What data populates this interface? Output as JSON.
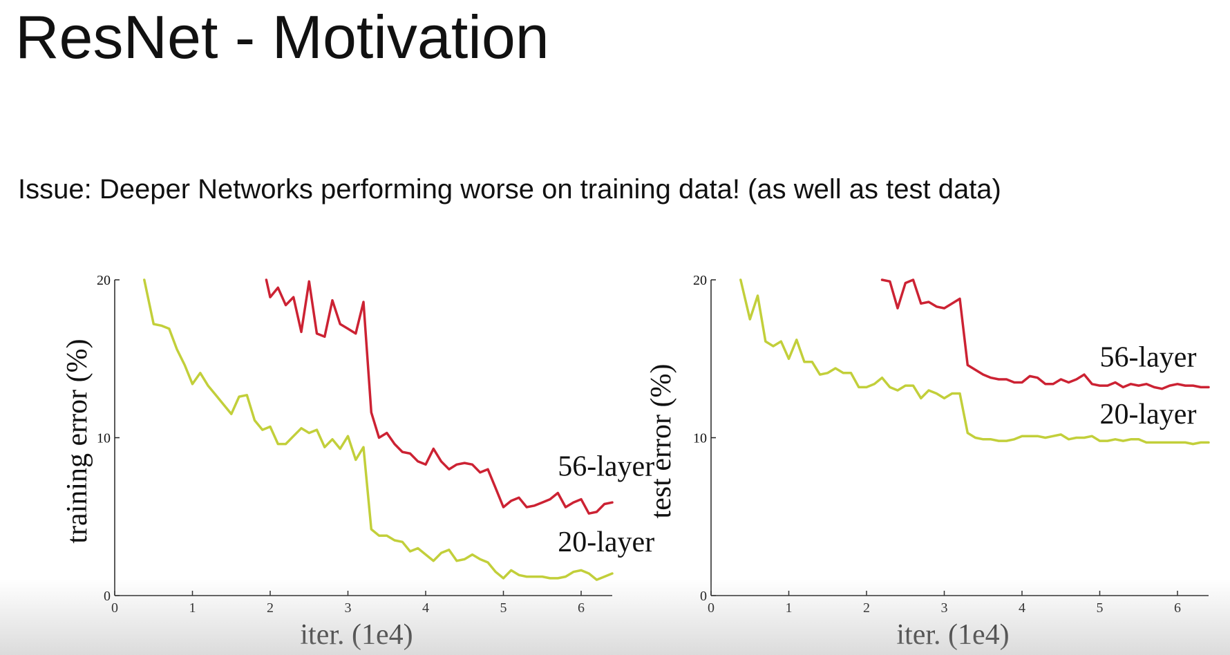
{
  "slide": {
    "title": "ResNet - Motivation",
    "subtitle": "Issue: Deeper Networks performing worse on training data! (as well as test data)"
  },
  "colors": {
    "layer56": "#cc2233",
    "layer20": "#c2cf3a",
    "axis": "#222222",
    "text": "#111111"
  },
  "chart_data": [
    {
      "type": "line",
      "title": "",
      "xlabel": "iter. (1e4)",
      "ylabel": "training error (%)",
      "xlim": [
        0,
        6.4
      ],
      "ylim": [
        0,
        20
      ],
      "xticks": [
        "0",
        "1",
        "2",
        "3",
        "4",
        "5",
        "6"
      ],
      "yticks": [
        "0",
        "10",
        "20"
      ],
      "grid": false,
      "legend": "inline labels at right end of lines",
      "series": [
        {
          "name": "56-layer",
          "color_key": "layer56",
          "x": [
            1.95,
            2.0,
            2.1,
            2.2,
            2.3,
            2.4,
            2.5,
            2.6,
            2.7,
            2.8,
            2.9,
            3.0,
            3.1,
            3.2,
            3.3,
            3.4,
            3.5,
            3.6,
            3.7,
            3.8,
            3.9,
            4.0,
            4.1,
            4.2,
            4.3,
            4.4,
            4.5,
            4.6,
            4.7,
            4.8,
            4.9,
            5.0,
            5.1,
            5.2,
            5.3,
            5.4,
            5.5,
            5.6,
            5.7,
            5.8,
            5.9,
            6.0,
            6.1,
            6.2,
            6.3,
            6.4
          ],
          "y": [
            20.0,
            18.9,
            19.5,
            18.4,
            18.9,
            16.7,
            19.9,
            16.6,
            16.4,
            18.7,
            17.2,
            16.9,
            16.6,
            18.6,
            11.6,
            10.0,
            10.3,
            9.6,
            9.1,
            9.0,
            8.5,
            8.3,
            9.3,
            8.5,
            8.0,
            8.3,
            8.4,
            8.3,
            7.8,
            8.0,
            6.8,
            5.6,
            6.0,
            6.2,
            5.6,
            5.7,
            5.9,
            6.1,
            6.5,
            5.6,
            5.9,
            6.1,
            5.2,
            5.3,
            5.8,
            5.9
          ],
          "label": "56-layer",
          "label_at": [
            5.7,
            7.6
          ]
        },
        {
          "name": "20-layer",
          "color_key": "layer20",
          "x": [
            0.38,
            0.5,
            0.6,
            0.7,
            0.8,
            0.9,
            1.0,
            1.1,
            1.2,
            1.3,
            1.4,
            1.5,
            1.6,
            1.7,
            1.8,
            1.9,
            2.0,
            2.1,
            2.2,
            2.3,
            2.4,
            2.5,
            2.6,
            2.7,
            2.8,
            2.9,
            3.0,
            3.1,
            3.2,
            3.3,
            3.4,
            3.5,
            3.6,
            3.7,
            3.8,
            3.9,
            4.0,
            4.1,
            4.2,
            4.3,
            4.4,
            4.5,
            4.6,
            4.7,
            4.8,
            4.9,
            5.0,
            5.1,
            5.2,
            5.3,
            5.4,
            5.5,
            5.6,
            5.7,
            5.8,
            5.9,
            6.0,
            6.1,
            6.2,
            6.3,
            6.4
          ],
          "y": [
            20.0,
            17.2,
            17.1,
            16.9,
            15.6,
            14.6,
            13.4,
            14.1,
            13.3,
            12.7,
            12.1,
            11.5,
            12.6,
            12.7,
            11.1,
            10.5,
            10.7,
            9.6,
            9.6,
            10.1,
            10.6,
            10.3,
            10.5,
            9.4,
            9.9,
            9.3,
            10.1,
            8.6,
            9.4,
            4.2,
            3.8,
            3.8,
            3.5,
            3.4,
            2.8,
            3.0,
            2.6,
            2.2,
            2.7,
            2.9,
            2.2,
            2.3,
            2.6,
            2.3,
            2.1,
            1.5,
            1.1,
            1.6,
            1.3,
            1.2,
            1.2,
            1.2,
            1.1,
            1.1,
            1.2,
            1.5,
            1.6,
            1.4,
            1.0,
            1.2,
            1.4
          ],
          "label": "20-layer",
          "label_at": [
            5.7,
            2.8
          ]
        }
      ]
    },
    {
      "type": "line",
      "title": "",
      "xlabel": "iter. (1e4)",
      "ylabel": "test error (%)",
      "xlim": [
        0,
        6.4
      ],
      "ylim": [
        0,
        20
      ],
      "xticks": [
        "0",
        "1",
        "2",
        "3",
        "4",
        "5",
        "6"
      ],
      "yticks": [
        "0",
        "10",
        "20"
      ],
      "grid": false,
      "legend": "inline labels at right end of lines",
      "series": [
        {
          "name": "56-layer",
          "color_key": "layer56",
          "x": [
            2.2,
            2.3,
            2.4,
            2.5,
            2.6,
            2.7,
            2.8,
            2.9,
            3.0,
            3.1,
            3.2,
            3.3,
            3.4,
            3.5,
            3.6,
            3.7,
            3.8,
            3.9,
            4.0,
            4.1,
            4.2,
            4.3,
            4.4,
            4.5,
            4.6,
            4.7,
            4.8,
            4.9,
            5.0,
            5.1,
            5.2,
            5.3,
            5.4,
            5.5,
            5.6,
            5.7,
            5.8,
            5.9,
            6.0,
            6.1,
            6.2,
            6.3,
            6.4
          ],
          "y": [
            20.0,
            19.9,
            18.2,
            19.8,
            20.0,
            18.5,
            18.6,
            18.3,
            18.2,
            18.5,
            18.8,
            14.6,
            14.3,
            14.0,
            13.8,
            13.7,
            13.7,
            13.5,
            13.5,
            13.9,
            13.8,
            13.4,
            13.4,
            13.7,
            13.5,
            13.7,
            14.0,
            13.4,
            13.3,
            13.3,
            13.5,
            13.2,
            13.4,
            13.3,
            13.4,
            13.2,
            13.1,
            13.3,
            13.4,
            13.3,
            13.3,
            13.2,
            13.2
          ],
          "label": "56-layer",
          "label_at": [
            5.0,
            14.5
          ]
        },
        {
          "name": "20-layer",
          "color_key": "layer20",
          "x": [
            0.38,
            0.5,
            0.6,
            0.7,
            0.8,
            0.9,
            1.0,
            1.1,
            1.2,
            1.3,
            1.4,
            1.5,
            1.6,
            1.7,
            1.8,
            1.9,
            2.0,
            2.1,
            2.2,
            2.3,
            2.4,
            2.5,
            2.6,
            2.7,
            2.8,
            2.9,
            3.0,
            3.1,
            3.2,
            3.3,
            3.4,
            3.5,
            3.6,
            3.7,
            3.8,
            3.9,
            4.0,
            4.1,
            4.2,
            4.3,
            4.4,
            4.5,
            4.6,
            4.7,
            4.8,
            4.9,
            5.0,
            5.1,
            5.2,
            5.3,
            5.4,
            5.5,
            5.6,
            5.7,
            5.8,
            5.9,
            6.0,
            6.1,
            6.2,
            6.3,
            6.4
          ],
          "y": [
            20.0,
            17.5,
            19.0,
            16.1,
            15.8,
            16.1,
            15.0,
            16.2,
            14.8,
            14.8,
            14.0,
            14.1,
            14.4,
            14.1,
            14.1,
            13.2,
            13.2,
            13.4,
            13.8,
            13.2,
            13.0,
            13.3,
            13.3,
            12.5,
            13.0,
            12.8,
            12.5,
            12.8,
            12.8,
            10.3,
            10.0,
            9.9,
            9.9,
            9.8,
            9.8,
            9.9,
            10.1,
            10.1,
            10.1,
            10.0,
            10.1,
            10.2,
            9.9,
            10.0,
            10.0,
            10.1,
            9.8,
            9.8,
            9.9,
            9.8,
            9.9,
            9.9,
            9.7,
            9.7,
            9.7,
            9.7,
            9.7,
            9.7,
            9.6,
            9.7,
            9.7
          ],
          "label": "20-layer",
          "label_at": [
            5.0,
            10.9
          ]
        }
      ]
    }
  ]
}
